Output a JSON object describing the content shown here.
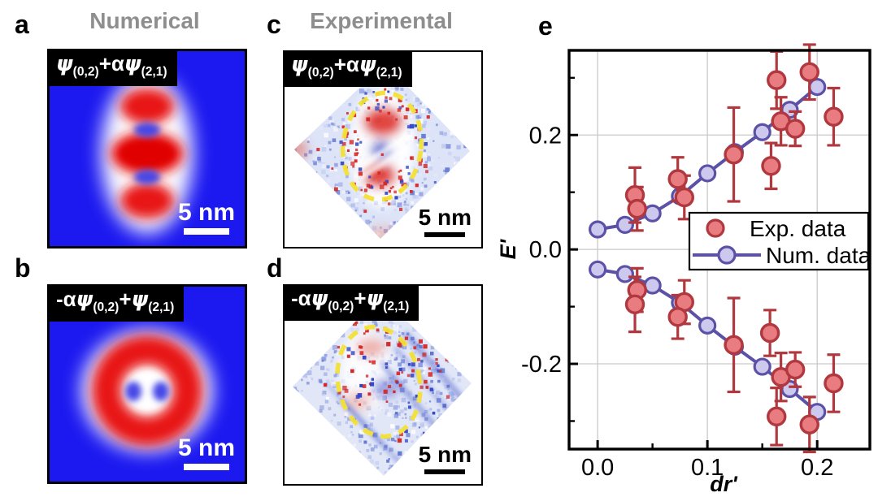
{
  "panels": {
    "a": {
      "letter": "a"
    },
    "b": {
      "letter": "b"
    },
    "c": {
      "letter": "c"
    },
    "d": {
      "letter": "d"
    },
    "e": {
      "letter": "e"
    }
  },
  "column_titles": {
    "numerical": "Numerical",
    "experimental": "Experimental"
  },
  "wavefunction_labels": {
    "a": [
      {
        "main": "ψ",
        "sub": "(0,2)"
      },
      {
        "main": "+αψ",
        "sub": "(2,1)"
      }
    ],
    "b": [
      {
        "main": "-αψ",
        "sub": "(0,2)"
      },
      {
        "main": "+ψ",
        "sub": "(2,1)"
      }
    ],
    "c": [
      {
        "main": "ψ",
        "sub": "(0,2)"
      },
      {
        "main": "+αψ",
        "sub": "(2,1)"
      }
    ],
    "d": [
      {
        "main": "-αψ",
        "sub": "(0,2)"
      },
      {
        "main": "+ψ",
        "sub": "(2,1)"
      }
    ]
  },
  "scale_bars": {
    "a": "5 nm",
    "b": "5 nm",
    "c": "5 nm",
    "d": "5 nm"
  },
  "colors": {
    "column_title_gray": "#8e8e8e",
    "map_blue": "#1b18f0",
    "map_red": "#e81616",
    "notch_blue": "#4747e6",
    "exp_fill": "#e87c80",
    "exp_stroke": "#b0383e",
    "num_fill": "#cdc9ee",
    "num_stroke": "#5b51a7",
    "grid": "#c9c9c9",
    "axis": "#000000",
    "ellipse_yellow": "#f2e035",
    "speckle_red": "#d42828",
    "speckle_blue": "#3346c8"
  },
  "chart_data": {
    "type": "scatter",
    "title": "",
    "xlabel": "dr'",
    "ylabel": "E'",
    "xlim": [
      -0.026,
      0.248
    ],
    "ylim": [
      -0.349,
      0.348
    ],
    "x_major_ticks": [
      0.0,
      0.1,
      0.2
    ],
    "x_minor_ticks": [
      0.05,
      0.15
    ],
    "y_major_ticks": [
      0.2,
      0.0,
      -0.2
    ],
    "y_minor_ticks": [
      0.3,
      0.1,
      -0.1,
      -0.3
    ],
    "grid": "major",
    "legend": {
      "position": "center-right",
      "entries": [
        "Exp. data",
        "Num. data"
      ]
    },
    "series": [
      {
        "name": "Exp. data",
        "type": "scatter",
        "points": [
          {
            "x": 0.034,
            "y": 0.095,
            "yerr": 0.048
          },
          {
            "x": 0.036,
            "y": 0.071,
            "yerr": 0.038
          },
          {
            "x": 0.073,
            "y": 0.123,
            "yerr": 0.038
          },
          {
            "x": 0.079,
            "y": 0.091,
            "yerr": 0.038
          },
          {
            "x": 0.124,
            "y": 0.166,
            "yerr": 0.082
          },
          {
            "x": 0.158,
            "y": 0.146,
            "yerr": 0.04
          },
          {
            "x": 0.163,
            "y": 0.296,
            "yerr": 0.05,
            "xerr": 0.005
          },
          {
            "x": 0.167,
            "y": 0.224,
            "yerr": 0.042
          },
          {
            "x": 0.18,
            "y": 0.211,
            "yerr": 0.03,
            "xerr": 0.005
          },
          {
            "x": 0.193,
            "y": 0.31,
            "yerr": 0.048,
            "xerr": 0.005
          },
          {
            "x": 0.215,
            "y": 0.232,
            "yerr": 0.05
          },
          {
            "x": 0.036,
            "y": -0.071,
            "yerr": 0.038
          },
          {
            "x": 0.034,
            "y": -0.096,
            "yerr": 0.048
          },
          {
            "x": 0.079,
            "y": -0.092,
            "yerr": 0.038
          },
          {
            "x": 0.073,
            "y": -0.118,
            "yerr": 0.038
          },
          {
            "x": 0.124,
            "y": -0.167,
            "yerr": 0.082
          },
          {
            "x": 0.157,
            "y": -0.146,
            "yerr": 0.04
          },
          {
            "x": 0.167,
            "y": -0.223,
            "yerr": 0.042
          },
          {
            "x": 0.18,
            "y": -0.21,
            "yerr": 0.03,
            "xerr": 0.005
          },
          {
            "x": 0.163,
            "y": -0.292,
            "yerr": 0.05,
            "xerr": 0.005
          },
          {
            "x": 0.193,
            "y": -0.306,
            "yerr": 0.048,
            "xerr": 0.005
          },
          {
            "x": 0.215,
            "y": -0.234,
            "yerr": 0.05
          }
        ]
      },
      {
        "name": "Num. data",
        "type": "line+marker",
        "branches": [
          {
            "x": [
              0.0,
              0.025,
              0.05,
              0.075,
              0.1,
              0.125,
              0.15,
              0.175,
              0.2
            ],
            "y": [
              0.035,
              0.043,
              0.063,
              0.093,
              0.133,
              0.17,
              0.205,
              0.244,
              0.284
            ]
          },
          {
            "x": [
              0.0,
              0.025,
              0.05,
              0.075,
              0.1,
              0.125,
              0.15,
              0.175,
              0.2
            ],
            "y": [
              -0.035,
              -0.043,
              -0.063,
              -0.093,
              -0.133,
              -0.17,
              -0.205,
              -0.244,
              -0.284
            ]
          }
        ]
      }
    ]
  }
}
